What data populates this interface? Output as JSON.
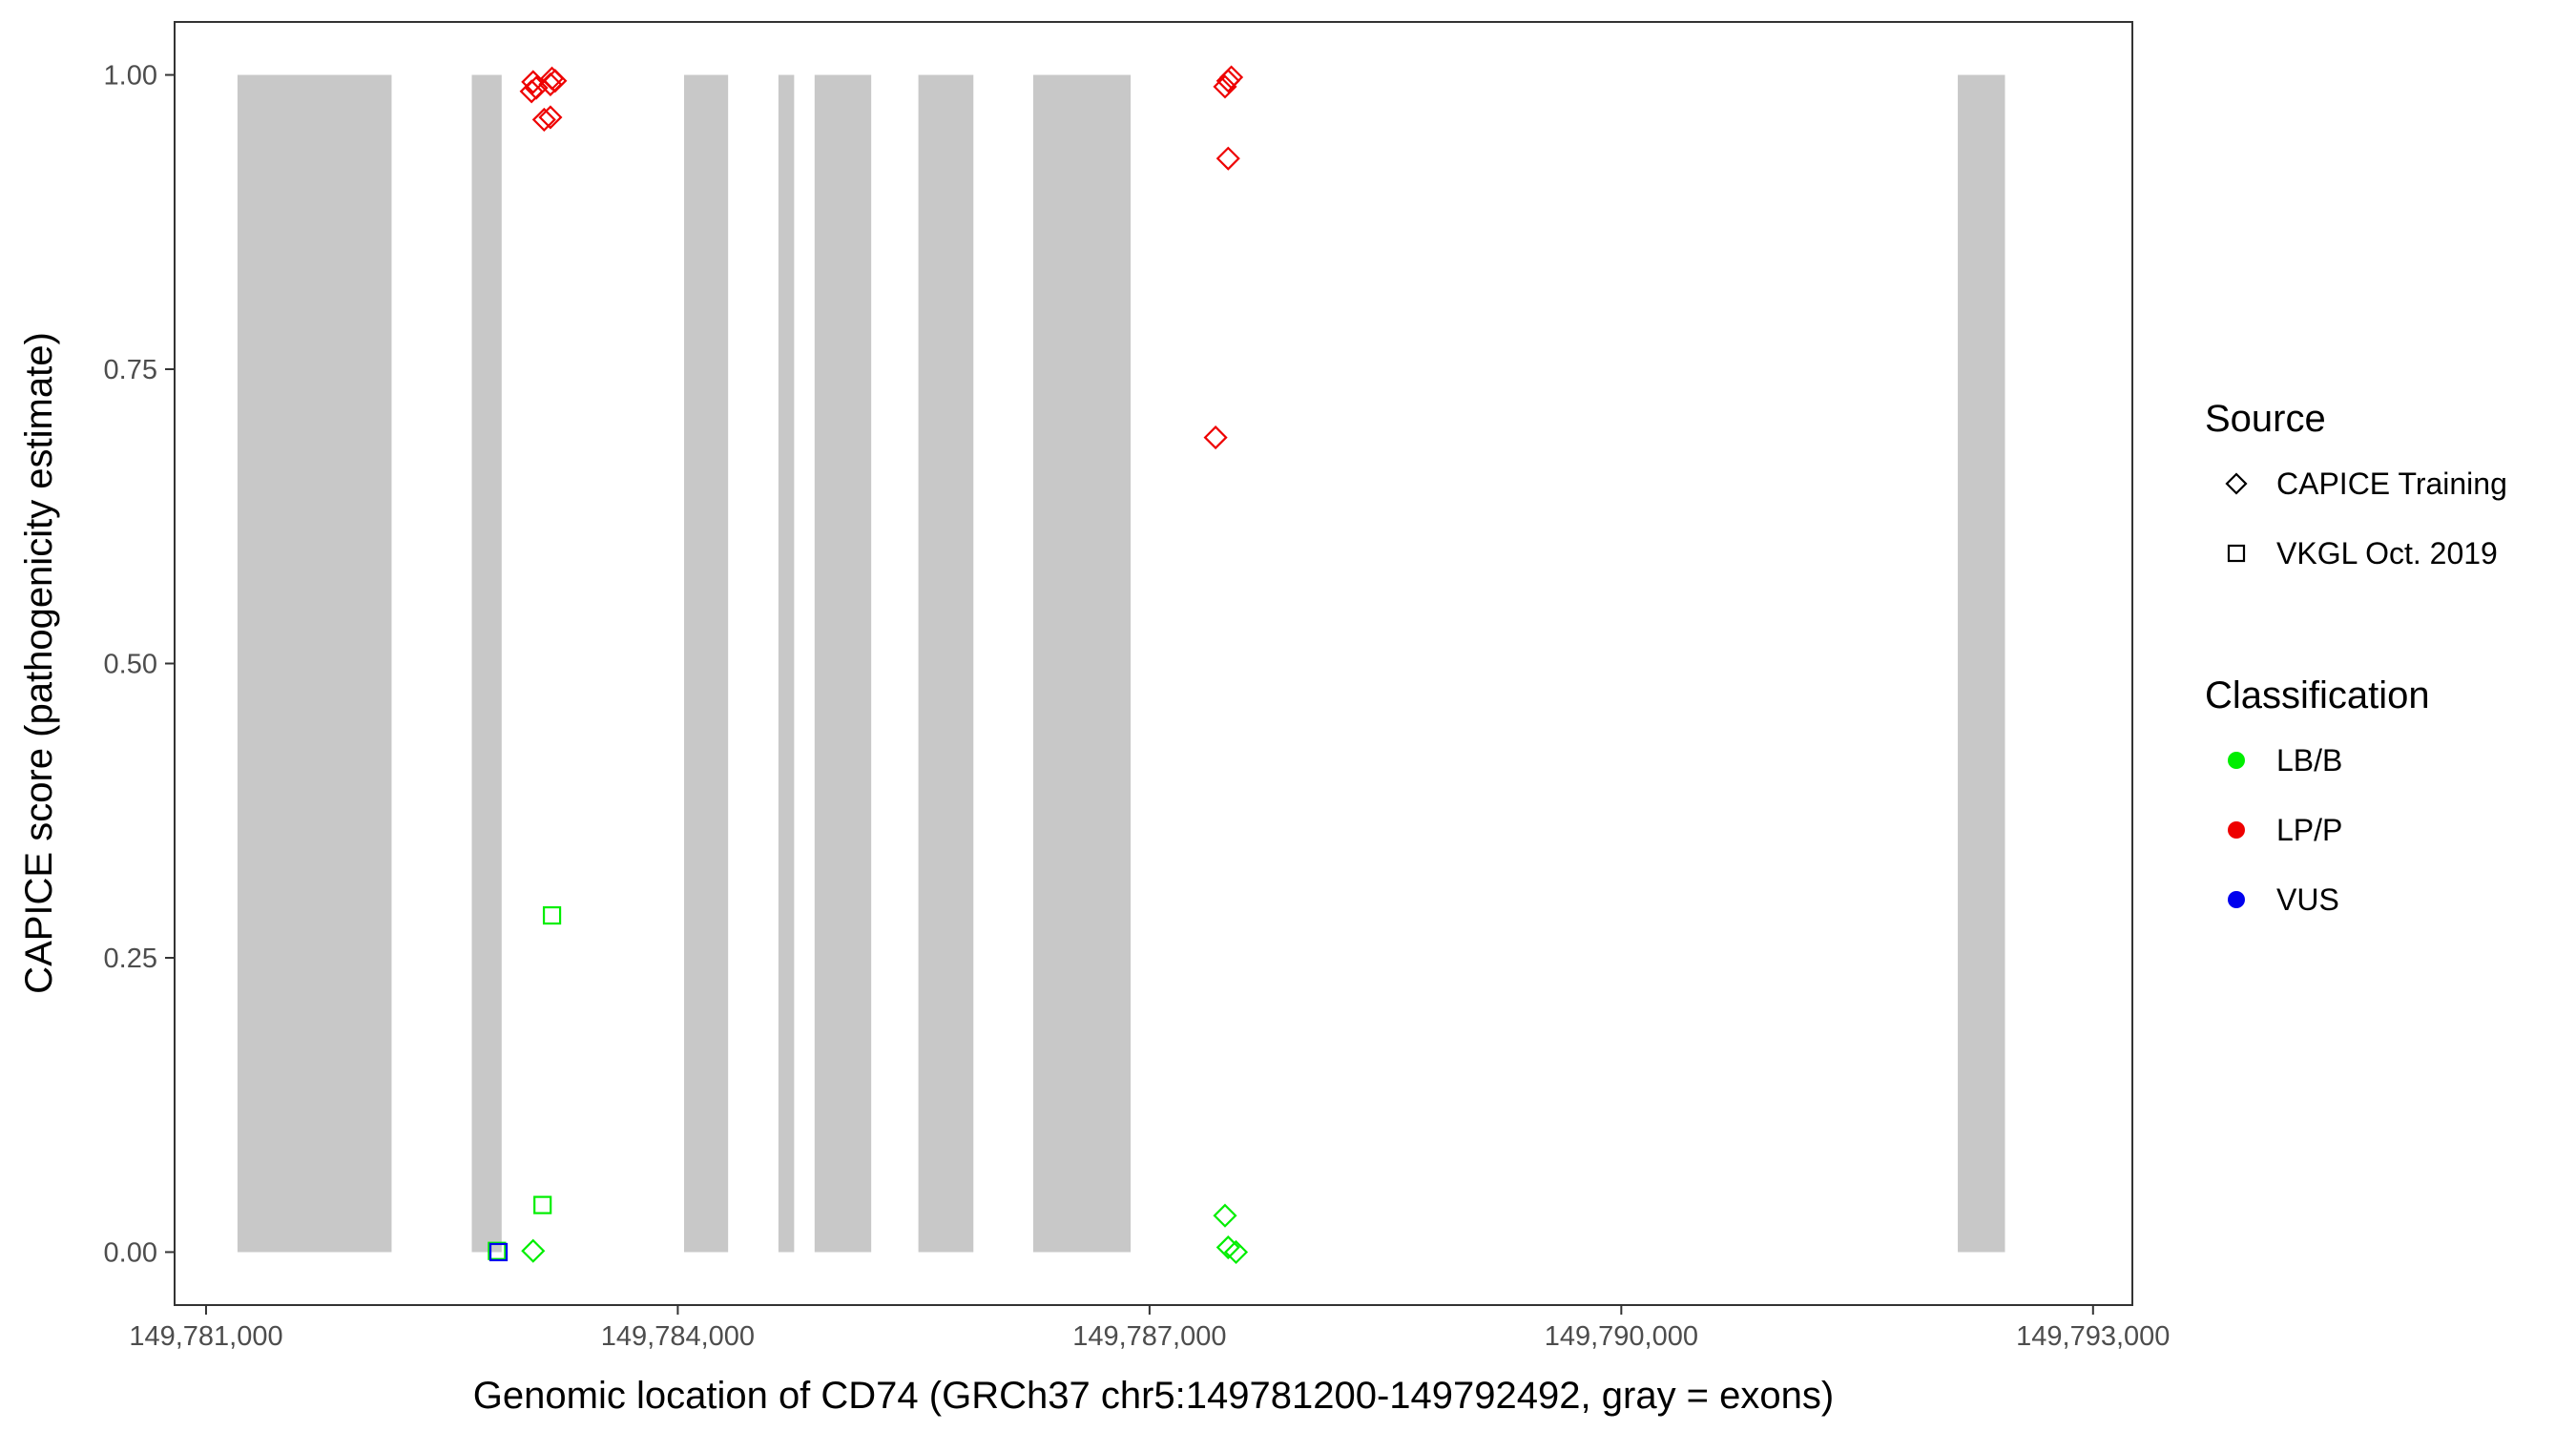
{
  "chart_data": {
    "type": "scatter",
    "xlabel": "Genomic location of CD74 (GRCh37 chr5:149781200-149792492, gray = exons)",
    "ylabel": "CAPICE score (pathogenicity estimate)",
    "xlim": [
      149780800,
      149793250
    ],
    "ylim": [
      -0.045,
      1.045
    ],
    "x_ticks": [
      149781000,
      149784000,
      149787000,
      149790000,
      149793000
    ],
    "x_tick_labels": [
      "149,781,000",
      "149,784,000",
      "149,787,000",
      "149,790,000",
      "149,793,000"
    ],
    "y_ticks": [
      0,
      0.25,
      0.5,
      0.75,
      1
    ],
    "y_tick_labels": [
      "0.00",
      "0.25",
      "0.50",
      "0.75",
      "1.00"
    ],
    "grid": false,
    "exon_color": "#c8c8c8",
    "exons": [
      [
        149781200,
        149782180
      ],
      [
        149782690,
        149782880
      ],
      [
        149784040,
        149784320
      ],
      [
        149784640,
        149784740
      ],
      [
        149784870,
        149785230
      ],
      [
        149785530,
        149785880
      ],
      [
        149786260,
        149786880
      ],
      [
        149792140,
        149792440
      ]
    ],
    "legend": {
      "position": "right",
      "source_title": "Source",
      "source_entries": [
        {
          "label": "CAPICE Training",
          "shape": "diamond"
        },
        {
          "label": "VKGL Oct. 2019",
          "shape": "square"
        }
      ],
      "classification_title": "Classification",
      "classification_entries": [
        {
          "label": "LB/B",
          "color": "#00ee00"
        },
        {
          "label": "LP/P",
          "color": "#ee0000"
        },
        {
          "label": "VUS",
          "color": "#0000ee"
        }
      ]
    },
    "points": [
      {
        "x": 149783080,
        "y": 0.994,
        "source": "CAPICE Training",
        "class": "LP/P"
      },
      {
        "x": 149783100,
        "y": 0.989,
        "source": "CAPICE Training",
        "class": "LP/P"
      },
      {
        "x": 149783070,
        "y": 0.986,
        "source": "CAPICE Training",
        "class": "LP/P"
      },
      {
        "x": 149783200,
        "y": 0.997,
        "source": "CAPICE Training",
        "class": "LP/P"
      },
      {
        "x": 149783220,
        "y": 0.995,
        "source": "CAPICE Training",
        "class": "LP/P"
      },
      {
        "x": 149783190,
        "y": 0.992,
        "source": "CAPICE Training",
        "class": "LP/P"
      },
      {
        "x": 149783150,
        "y": 0.962,
        "source": "CAPICE Training",
        "class": "LP/P"
      },
      {
        "x": 149783190,
        "y": 0.964,
        "source": "CAPICE Training",
        "class": "LP/P"
      },
      {
        "x": 149787520,
        "y": 0.998,
        "source": "CAPICE Training",
        "class": "LP/P"
      },
      {
        "x": 149787500,
        "y": 0.995,
        "source": "CAPICE Training",
        "class": "LP/P"
      },
      {
        "x": 149787480,
        "y": 0.99,
        "source": "CAPICE Training",
        "class": "LP/P"
      },
      {
        "x": 149787500,
        "y": 0.929,
        "source": "CAPICE Training",
        "class": "LP/P"
      },
      {
        "x": 149787420,
        "y": 0.692,
        "source": "CAPICE Training",
        "class": "LP/P"
      },
      {
        "x": 149783200,
        "y": 0.286,
        "source": "VKGL Oct. 2019",
        "class": "LB/B"
      },
      {
        "x": 149783140,
        "y": 0.04,
        "source": "VKGL Oct. 2019",
        "class": "LB/B"
      },
      {
        "x": 149782850,
        "y": 0.001,
        "source": "VKGL Oct. 2019",
        "class": "LB/B"
      },
      {
        "x": 149782860,
        "y": 0.0,
        "source": "VKGL Oct. 2019",
        "class": "VUS"
      },
      {
        "x": 149783080,
        "y": 0.001,
        "source": "CAPICE Training",
        "class": "LB/B"
      },
      {
        "x": 149787480,
        "y": 0.031,
        "source": "CAPICE Training",
        "class": "LB/B"
      },
      {
        "x": 149787500,
        "y": 0.004,
        "source": "CAPICE Training",
        "class": "LB/B"
      },
      {
        "x": 149787550,
        "y": 0.0,
        "source": "CAPICE Training",
        "class": "LB/B"
      }
    ]
  }
}
